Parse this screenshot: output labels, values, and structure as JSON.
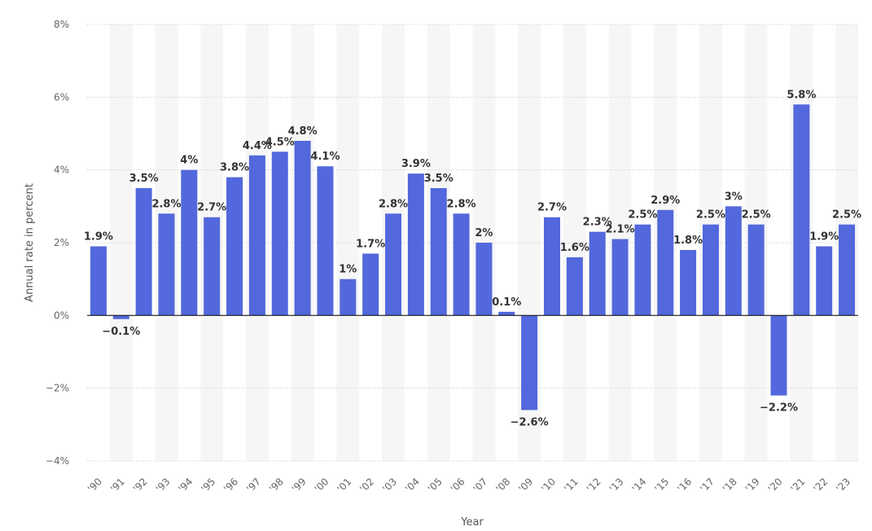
{
  "chart_data": {
    "type": "bar",
    "xlabel": "Year",
    "ylabel": "Annual rate in percent",
    "ylim": [
      -4,
      8
    ],
    "yticks": [
      8,
      6,
      4,
      2,
      0,
      -2,
      -4
    ],
    "ytick_labels": [
      "8%",
      "6%",
      "4%",
      "2%",
      "0%",
      "−2%",
      "−4%"
    ],
    "categories": [
      "'90",
      "'91",
      "'92",
      "'93",
      "'94",
      "'95",
      "'96",
      "'97",
      "'98",
      "'99",
      "'00",
      "'01",
      "'02",
      "'03",
      "'04",
      "'05",
      "'06",
      "'07",
      "'08",
      "'09",
      "'10",
      "'11",
      "'12",
      "'13",
      "'14",
      "'15",
      "'16",
      "'17",
      "'18",
      "'19",
      "'20",
      "'21",
      "'22",
      "'23"
    ],
    "values": [
      1.9,
      -0.1,
      3.5,
      2.8,
      4,
      2.7,
      3.8,
      4.4,
      4.5,
      4.8,
      4.1,
      1,
      1.7,
      2.8,
      3.9,
      3.5,
      2.8,
      2,
      0.1,
      -2.6,
      2.7,
      1.6,
      2.3,
      2.1,
      2.5,
      2.9,
      1.8,
      2.5,
      3,
      2.5,
      -2.2,
      5.8,
      1.9,
      2.5
    ],
    "value_labels": [
      "1.9%",
      "−0.1%",
      "3.5%",
      "2.8%",
      "4%",
      "2.7%",
      "3.8%",
      "4.4%",
      "4.5%",
      "4.8%",
      "4.1%",
      "1%",
      "1.7%",
      "2.8%",
      "3.9%",
      "3.5%",
      "2.8%",
      "2%",
      "0.1%",
      "−2.6%",
      "2.7%",
      "1.6%",
      "2.3%",
      "2.1%",
      "2.5%",
      "2.9%",
      "1.8%",
      "2.5%",
      "3%",
      "2.5%",
      "−2.2%",
      "5.8%",
      "1.9%",
      "2.5%"
    ],
    "grid": true,
    "legend": "none",
    "colors": {
      "bar": "#5268dc",
      "stripe": "#f6f6f6",
      "grid": "#c8c8c8",
      "zero_line": "#1a1a1a"
    }
  }
}
